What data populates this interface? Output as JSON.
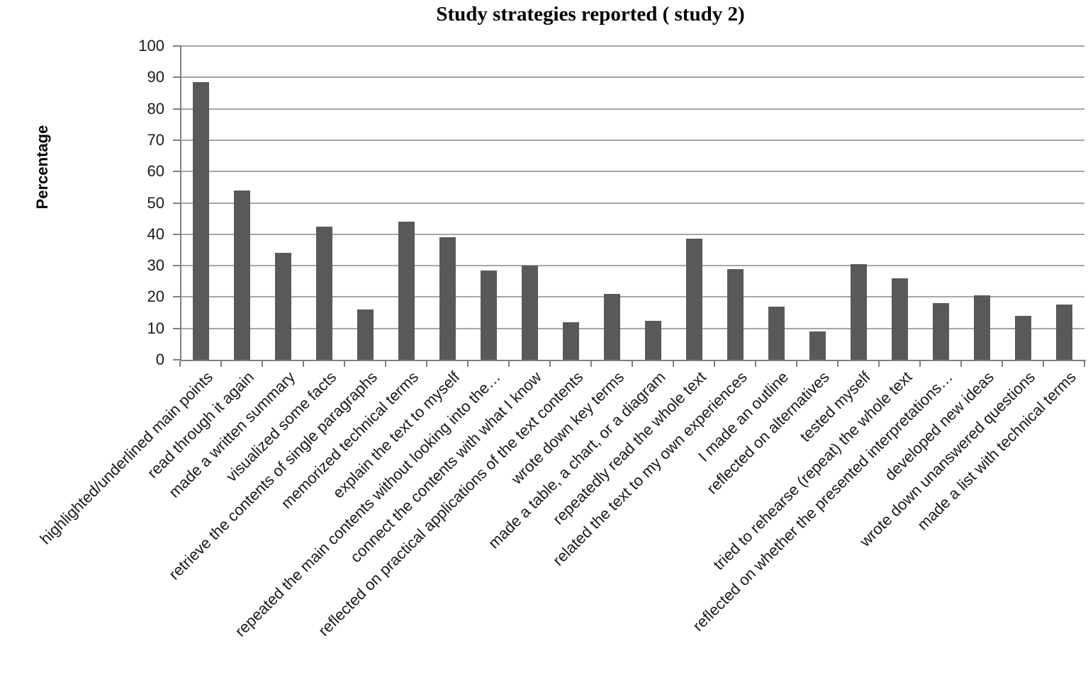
{
  "chart_data": {
    "type": "bar",
    "title": "Study strategies reported ( study 2)",
    "ylabel": "Percentage",
    "xlabel": "",
    "ylim": [
      0,
      100
    ],
    "ytick_step": 10,
    "yticks": [
      0,
      10,
      20,
      30,
      40,
      50,
      60,
      70,
      80,
      90,
      100
    ],
    "grid": true,
    "legend": false,
    "bar_color": "#595959",
    "axis_color": "#7f7f7f",
    "gridline_color": "#a6a6a6",
    "categories": [
      "highlighted/underlined main points",
      "read through it again",
      "made a written summary",
      "visualized some facts",
      "retrieve the contents of single paragraphs",
      "memorized technical terms",
      "explain the text to myself",
      "repeated the main contents without looking into the…",
      "connect the contents with what I know",
      "reflected on practical applications of the text contents",
      "wrote down key terms",
      "made a table, a chart, or a diagram",
      "repeatedly read the whole text",
      "related the text to my own experiences",
      "I made an outline",
      "reflected on alternatives",
      "tested myself",
      "tried to rehearse (repeat) the whole text",
      "reflected on whether the presented interpretations…",
      "developed new ideas",
      "wrote down unanswered questions",
      "made a list with technical terms"
    ],
    "values": [
      88.5,
      54,
      34,
      42.5,
      16,
      44,
      39,
      28.5,
      30,
      12,
      21,
      12.5,
      38.5,
      29,
      17,
      9,
      30.5,
      26,
      18,
      20.5,
      14,
      17.5
    ]
  }
}
